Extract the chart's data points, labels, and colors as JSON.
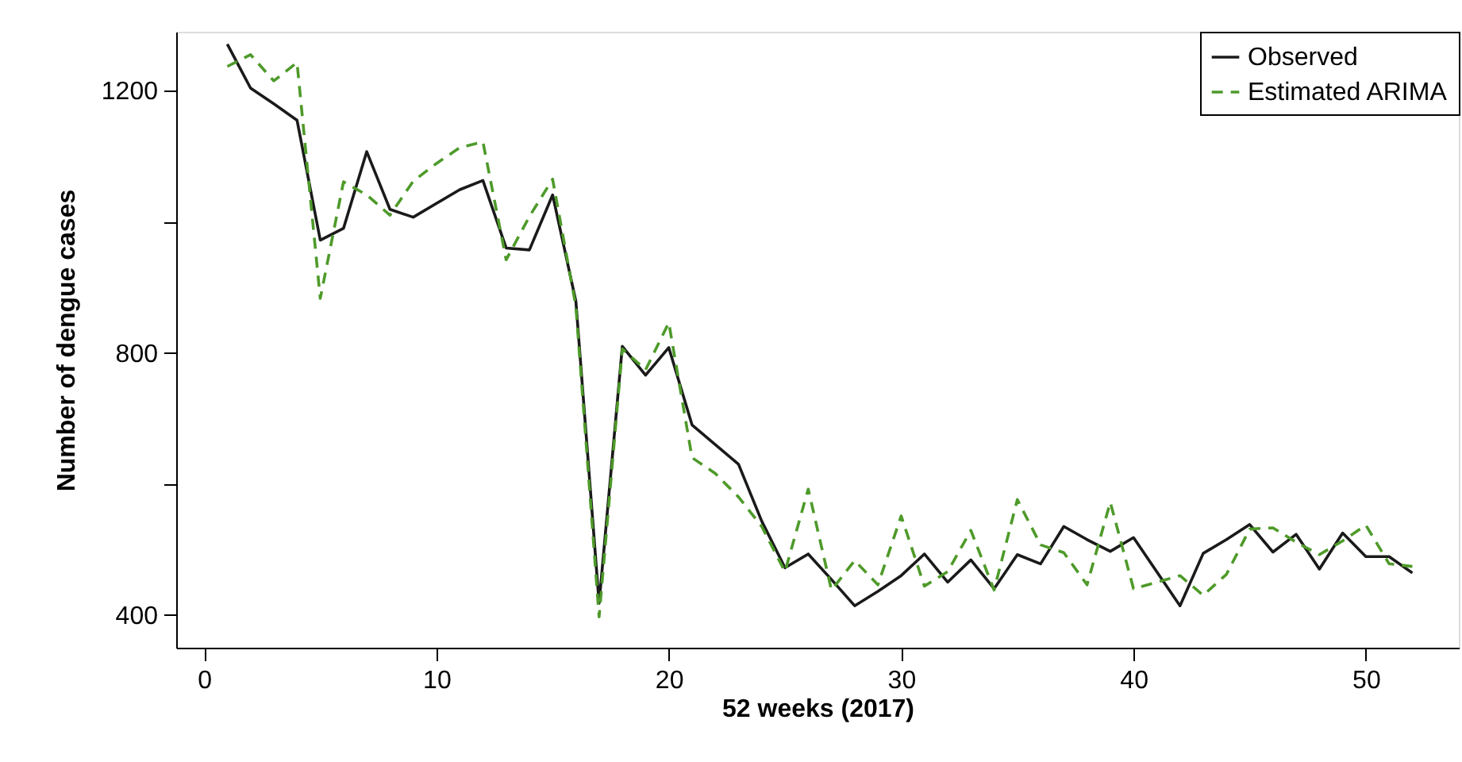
{
  "chart_data": {
    "type": "line",
    "xlabel": "52 weeks (2017)",
    "ylabel": "Number of dengue cases",
    "x": [
      1,
      2,
      3,
      4,
      5,
      6,
      7,
      8,
      9,
      10,
      11,
      12,
      13,
      14,
      15,
      16,
      17,
      18,
      19,
      20,
      21,
      22,
      23,
      24,
      25,
      26,
      27,
      28,
      29,
      30,
      31,
      32,
      33,
      34,
      35,
      36,
      37,
      38,
      39,
      40,
      41,
      42,
      43,
      44,
      45,
      46,
      47,
      48,
      49,
      50,
      51,
      52
    ],
    "series": [
      {
        "name": "Observed",
        "color": "#1a1a1a",
        "line_style": "solid",
        "values": [
          1271,
          1204,
          1180,
          1155,
          972,
          990,
          1107,
          1019,
          1007,
          1028,
          1049,
          1063,
          960,
          957,
          1041,
          879,
          418,
          810,
          766,
          808,
          690,
          660,
          630,
          543,
          472,
          493,
          454,
          414,
          436,
          460,
          493,
          450,
          484,
          440,
          492,
          478,
          535,
          515,
          497,
          518,
          466,
          414,
          494,
          515,
          538,
          496,
          523,
          470,
          525,
          489,
          489,
          464
        ]
      },
      {
        "name": "Estimated ARIMA",
        "color": "#4e9a2a",
        "line_style": "dashed",
        "values": [
          1237,
          1255,
          1215,
          1243,
          883,
          1061,
          1041,
          1010,
          1062,
          1089,
          1113,
          1122,
          942,
          1008,
          1065,
          871,
          397,
          806,
          774,
          846,
          640,
          616,
          580,
          535,
          466,
          592,
          438,
          483,
          446,
          551,
          444,
          466,
          529,
          438,
          576,
          507,
          495,
          446,
          572,
          440,
          450,
          460,
          430,
          462,
          531,
          533,
          511,
          492,
          513,
          537,
          478,
          474
        ]
      }
    ],
    "xlim": [
      -1.2,
      54
    ],
    "xticks": [
      0,
      10,
      20,
      30,
      40,
      50
    ],
    "ylim": [
      350,
      1290
    ],
    "yticks": [
      400,
      {
        "value": 600,
        "label": null
      },
      800,
      {
        "value": 1000,
        "label": null
      },
      1200
    ],
    "grid": false,
    "legend": "top right",
    "marker": "none"
  }
}
